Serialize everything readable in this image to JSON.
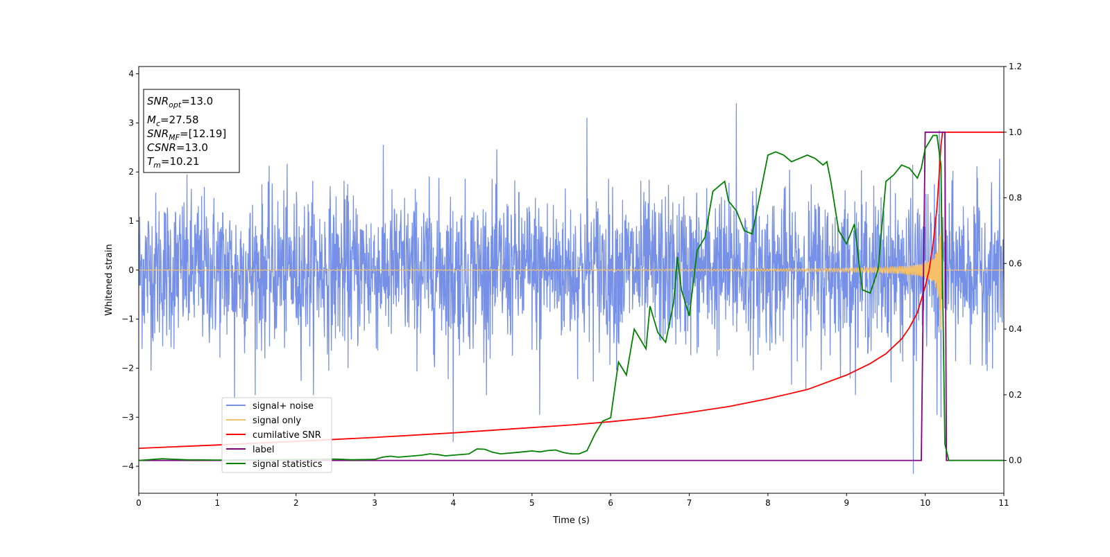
{
  "chart_data": {
    "type": "line",
    "xlabel": "Time (s)",
    "ylabel": "Whitened strain",
    "xlim": [
      0,
      11
    ],
    "ylim_left": [
      -4.55,
      4.15
    ],
    "ylim_right": [
      -0.1,
      1.2
    ],
    "xticks": [
      "0",
      "1",
      "2",
      "3",
      "4",
      "5",
      "6",
      "7",
      "8",
      "9",
      "10",
      "11"
    ],
    "yticks_left": [
      "−4",
      "−3",
      "−2",
      "−1",
      "0",
      "1",
      "2",
      "3",
      "4"
    ],
    "yticks_right": [
      "0.0",
      "0.2",
      "0.4",
      "0.6",
      "0.8",
      "1.0",
      "1.2"
    ],
    "grid": false,
    "legend_position": "lower-left",
    "colors": {
      "noise": "#7590e6",
      "signal": "#f5c06a",
      "snr": "#ff0000",
      "label": "#800080",
      "stat": "#008000"
    },
    "annotation": {
      "snr_opt_value": "=13.0",
      "mc_value": "=27.58",
      "snr_mf_value": "=[12.19]",
      "csnr_label": "CSNR",
      "csnr_value": "=13.0",
      "tm_value": "=10.21"
    },
    "series": [
      {
        "name": "signal+ noise",
        "axis": "left",
        "description": "whitened noise, amplitude roughly ±2 with spikes up to 3.4 and down to -4.2",
        "spikes": [
          [
            1.22,
            -2.65
          ],
          [
            4.0,
            -3.5
          ],
          [
            5.1,
            -2.95
          ],
          [
            5.7,
            3.1
          ],
          [
            7.6,
            3.4
          ],
          [
            9.85,
            -4.15
          ],
          [
            10.15,
            -2.95
          ],
          [
            10.18,
            2.85
          ],
          [
            10.2,
            -3.0
          ],
          [
            10.25,
            2.3
          ]
        ]
      },
      {
        "name": "signal only",
        "axis": "left",
        "description": "chirp, amplitude grows toward merger",
        "merger_time": 10.21
      },
      {
        "name": "cumilative SNR",
        "axis": "right",
        "x": [
          0,
          1,
          2,
          3,
          4,
          5,
          5.5,
          6,
          6.5,
          7,
          7.5,
          8,
          8.5,
          9,
          9.3,
          9.5,
          9.7,
          9.8,
          9.9,
          10.0,
          10.05,
          10.1,
          10.15,
          10.18,
          10.2,
          10.22,
          11
        ],
        "values": [
          0.037,
          0.047,
          0.058,
          0.07,
          0.084,
          0.1,
          0.108,
          0.118,
          0.13,
          0.146,
          0.164,
          0.188,
          0.216,
          0.26,
          0.295,
          0.325,
          0.37,
          0.405,
          0.45,
          0.53,
          0.58,
          0.66,
          0.77,
          0.88,
          0.96,
          1.0,
          1.0
        ]
      },
      {
        "name": "label",
        "axis": "right",
        "x": [
          0,
          9.95,
          10.0,
          10.25,
          10.27,
          11
        ],
        "values": [
          0.0,
          0.0,
          1.0,
          1.0,
          0.0,
          0.0
        ]
      },
      {
        "name": "signal statistics",
        "axis": "right",
        "x": [
          0,
          0.3,
          0.6,
          1.0,
          1.5,
          2.0,
          2.5,
          2.7,
          3.0,
          3.1,
          3.2,
          3.3,
          3.5,
          3.6,
          3.7,
          3.8,
          3.9,
          4.0,
          4.1,
          4.2,
          4.3,
          4.4,
          4.5,
          4.6,
          4.8,
          5.0,
          5.1,
          5.2,
          5.3,
          5.4,
          5.5,
          5.6,
          5.7,
          5.8,
          5.9,
          6.0,
          6.1,
          6.15,
          6.2,
          6.3,
          6.4,
          6.45,
          6.5,
          6.6,
          6.7,
          6.8,
          6.85,
          6.9,
          7.0,
          7.1,
          7.2,
          7.3,
          7.4,
          7.45,
          7.5,
          7.6,
          7.7,
          7.8,
          7.9,
          8.0,
          8.1,
          8.2,
          8.3,
          8.4,
          8.5,
          8.6,
          8.7,
          8.75,
          8.8,
          8.9,
          9.0,
          9.1,
          9.2,
          9.3,
          9.4,
          9.5,
          9.6,
          9.7,
          9.8,
          9.9,
          9.95,
          10.0,
          10.1,
          10.15,
          10.2,
          10.25,
          10.3,
          10.35,
          10.5,
          11
        ],
        "values": [
          0.0,
          0.005,
          0.002,
          0.001,
          0.002,
          0.003,
          0.004,
          0.002,
          0.003,
          0.01,
          0.013,
          0.01,
          0.014,
          0.016,
          0.02,
          0.018,
          0.014,
          0.016,
          0.018,
          0.02,
          0.035,
          0.034,
          0.025,
          0.02,
          0.024,
          0.029,
          0.026,
          0.03,
          0.032,
          0.024,
          0.02,
          0.02,
          0.03,
          0.08,
          0.12,
          0.13,
          0.3,
          0.28,
          0.26,
          0.4,
          0.36,
          0.34,
          0.47,
          0.39,
          0.36,
          0.48,
          0.62,
          0.52,
          0.44,
          0.64,
          0.68,
          0.82,
          0.84,
          0.85,
          0.79,
          0.76,
          0.7,
          0.69,
          0.81,
          0.93,
          0.94,
          0.93,
          0.91,
          0.92,
          0.93,
          0.92,
          0.9,
          0.91,
          0.85,
          0.7,
          0.66,
          0.72,
          0.52,
          0.51,
          0.58,
          0.85,
          0.87,
          0.9,
          0.89,
          0.86,
          0.89,
          0.95,
          0.99,
          0.99,
          0.9,
          0.05,
          0.0,
          0.0,
          0.0,
          0.0
        ]
      }
    ]
  }
}
